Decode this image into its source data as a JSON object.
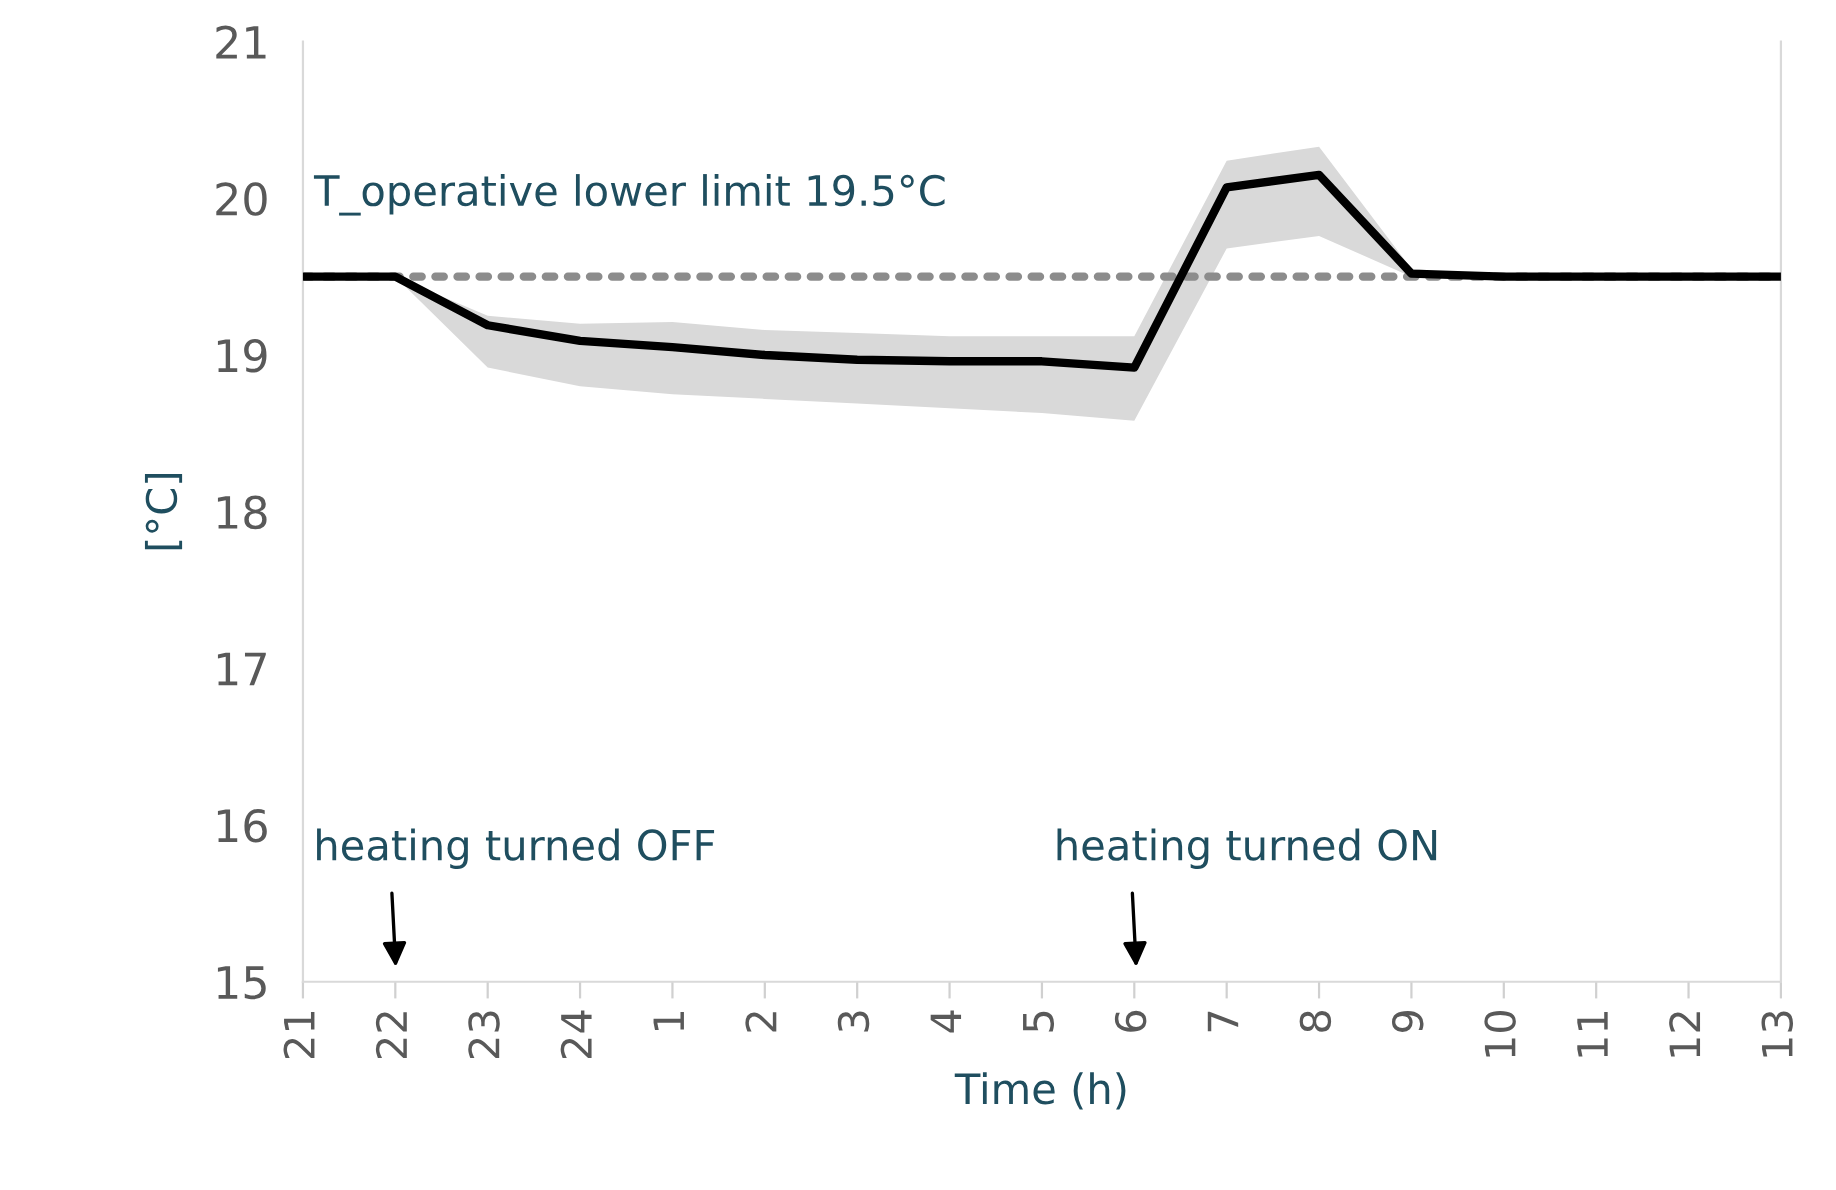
{
  "chart_data": {
    "type": "line",
    "xlabel": "Time (h)",
    "ylabel": "[°C]",
    "categories": [
      "21",
      "22",
      "23",
      "24",
      "1",
      "2",
      "3",
      "4",
      "5",
      "6",
      "7",
      "8",
      "9",
      "10",
      "11",
      "12",
      "13"
    ],
    "series": [
      {
        "color": "#000000",
        "values": [
          19.5,
          19.5,
          19.19,
          19.09,
          19.05,
          19.0,
          18.97,
          18.96,
          18.96,
          18.92,
          20.07,
          20.15,
          19.52,
          19.5,
          19.5,
          19.5,
          19.5
        ],
        "lower": [
          19.5,
          19.5,
          18.92,
          18.8,
          18.75,
          18.72,
          18.69,
          18.66,
          18.63,
          18.58,
          19.68,
          19.76,
          19.5,
          19.5,
          19.5,
          19.5,
          19.5
        ],
        "upper": [
          19.5,
          19.5,
          19.25,
          19.2,
          19.21,
          19.16,
          19.14,
          19.12,
          19.12,
          19.12,
          20.24,
          20.33,
          19.55,
          19.5,
          19.5,
          19.5,
          19.5
        ]
      }
    ],
    "ylim": [
      15,
      21
    ],
    "yticks": [
      15,
      16,
      17,
      18,
      19,
      20,
      21
    ],
    "grid": false,
    "legend": false,
    "marker": "none",
    "line_style": "solid",
    "ref_lines": [
      {
        "axis": "y",
        "value": 19.5,
        "label": "T_operative lower limit 19.5°C",
        "color": "#8c8c8c",
        "line_style": "dotted"
      }
    ],
    "annotations": [
      "heating turned OFF",
      "heating turned ON"
    ]
  }
}
